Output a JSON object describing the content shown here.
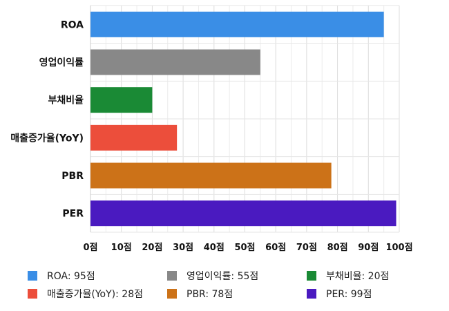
{
  "chart_data": {
    "type": "bar",
    "orientation": "horizontal",
    "categories": [
      "ROA",
      "영업이익률",
      "부채비율",
      "매출증가율(YoY)",
      "PBR",
      "PER"
    ],
    "values": [
      95,
      55,
      20,
      28,
      78,
      99
    ],
    "colors": [
      "#3a8ee6",
      "#888888",
      "#1a8a35",
      "#ec4e3b",
      "#cc7218",
      "#4a1ac0"
    ],
    "xlim": [
      0,
      100
    ],
    "x_ticks": [
      0,
      10,
      20,
      30,
      40,
      50,
      60,
      70,
      80,
      90,
      100
    ],
    "x_tick_labels": [
      "0점",
      "10점",
      "20점",
      "30점",
      "40점",
      "50점",
      "60점",
      "70점",
      "80점",
      "90점",
      "100점"
    ],
    "grid": true,
    "legend_position": "bottom",
    "legend": [
      "ROA: 95점",
      "매출증가율(YoY): 28점",
      "영업이익률: 55점",
      "PBR: 78점",
      "부채비율: 20점",
      "PER: 99점"
    ]
  }
}
